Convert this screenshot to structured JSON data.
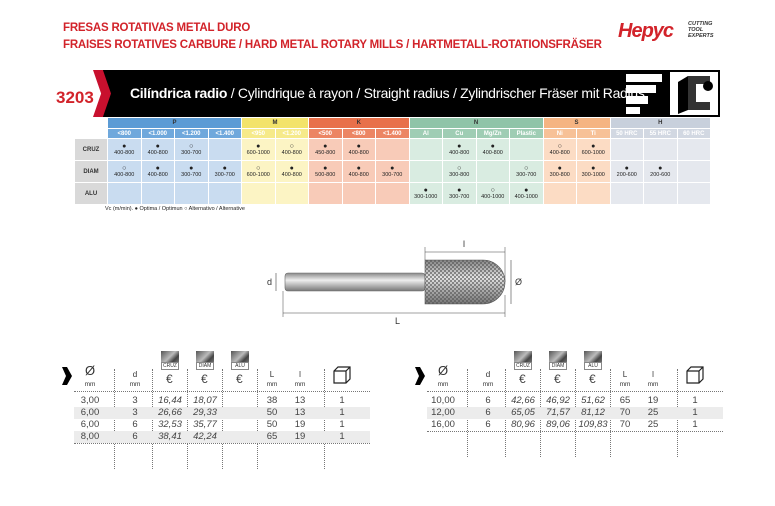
{
  "header": {
    "line1": "FRESAS ROTATIVAS METAL DURO",
    "line2": "FRAISES ROTATIVES CARBURE / HARD METAL ROTARY MILLS / HARTMETALL-ROTATIONSFRÄSER",
    "logo_text": "Hepyc",
    "logo_tagline": "CUTTING TOOL EXPERTS"
  },
  "product": {
    "code": "3203",
    "title_bold": "Cilíndrica radio",
    "title_rest": " / Cylindrique à rayon / Straight radius / Zylindrischer Fräser mit Radius"
  },
  "materials": {
    "groups": [
      {
        "name": "P",
        "color": "#5b9bd5",
        "sub": "#6fa8dc",
        "cell": "#c9dcf0",
        "cols": [
          "<800",
          "<1.000",
          "<1.200",
          "<1.400"
        ]
      },
      {
        "name": "M",
        "color": "#f3e36a",
        "sub": "#f6ea8a",
        "cell": "#fcf4c4",
        "cols": [
          "<950",
          "<1.200"
        ]
      },
      {
        "name": "K",
        "color": "#e8704a",
        "sub": "#ec8563",
        "cell": "#f8cbb8",
        "cols": [
          "<500",
          "<800",
          "<1.400"
        ]
      },
      {
        "name": "N",
        "color": "#8fc4a8",
        "sub": "#9fcdb4",
        "cell": "#d9ece1",
        "cols": [
          "Al",
          "Cu",
          "Mg/Zn",
          "Plastic"
        ]
      },
      {
        "name": "S",
        "color": "#f5b482",
        "sub": "#f7c197",
        "cell": "#fcdcc4",
        "cols": [
          "Ni",
          "Ti"
        ]
      },
      {
        "name": "H",
        "color": "#c8d0dc",
        "sub": "#d2d8e2",
        "cell": "#e5e8ee",
        "cols": [
          "50 HRC",
          "55 HRC",
          "60 HRC"
        ]
      }
    ],
    "rows": [
      {
        "label": "CRUZ",
        "cells": [
          [
            "●",
            "400-800"
          ],
          [
            "●",
            "400-800"
          ],
          [
            "○",
            "300-700"
          ],
          [
            "",
            ""
          ],
          [
            "●",
            "600-1000"
          ],
          [
            "○",
            "400-800"
          ],
          [
            "●",
            "450-800"
          ],
          [
            "●",
            "400-800"
          ],
          [
            "",
            ""
          ],
          [
            "",
            ""
          ],
          [
            "●",
            "400-800"
          ],
          [
            "●",
            "400-800"
          ],
          [
            "",
            ""
          ],
          [
            "○",
            "400-800"
          ],
          [
            "●",
            "600-1000"
          ],
          [
            "",
            ""
          ],
          [
            "",
            ""
          ],
          [
            "",
            ""
          ]
        ]
      },
      {
        "label": "DIAM",
        "cells": [
          [
            "○",
            "400-800"
          ],
          [
            "●",
            "400-800"
          ],
          [
            "●",
            "300-700"
          ],
          [
            "●",
            "300-700"
          ],
          [
            "○",
            "600-1000"
          ],
          [
            "●",
            "400-800"
          ],
          [
            "●",
            "500-800"
          ],
          [
            "●",
            "400-800"
          ],
          [
            "●",
            "300-700"
          ],
          [
            "",
            ""
          ],
          [
            "○",
            "300-800"
          ],
          [
            "",
            ""
          ],
          [
            "○",
            "300-700"
          ],
          [
            "●",
            "300-800"
          ],
          [
            "●",
            "300-1000"
          ],
          [
            "●",
            "200-600"
          ],
          [
            "●",
            "200-600"
          ],
          [
            "",
            ""
          ]
        ]
      },
      {
        "label": "ALU",
        "cells": [
          [
            "",
            ""
          ],
          [
            "",
            ""
          ],
          [
            "",
            ""
          ],
          [
            "",
            ""
          ],
          [
            "",
            ""
          ],
          [
            "",
            ""
          ],
          [
            "",
            ""
          ],
          [
            "",
            ""
          ],
          [
            "",
            ""
          ],
          [
            "●",
            "300-1000"
          ],
          [
            "●",
            "300-700"
          ],
          [
            "○",
            "400-1000"
          ],
          [
            "●",
            "400-1000"
          ],
          [
            "",
            ""
          ],
          [
            "",
            ""
          ],
          [
            "",
            ""
          ],
          [
            "",
            ""
          ],
          [
            "",
            ""
          ]
        ]
      }
    ],
    "legend": "Vc (m/min). ● Optima / Optimun  ○ Alternativo / Alternative"
  },
  "drawing": {
    "label_l": "l",
    "label_L": "L",
    "label_d": "d",
    "label_diam": "Ø"
  },
  "table_headers": {
    "diam": "Ø",
    "d": "d",
    "mm": "mm",
    "L": "L",
    "l": "l",
    "cruz": "CRUZ",
    "diam_cut": "DIAM",
    "alu": "ALU",
    "euro": "€",
    "pack_icon": "box-icon"
  },
  "tables": [
    {
      "rows": [
        [
          "3,00",
          "3",
          "16,44",
          "18,07",
          "",
          "38",
          "13",
          "1"
        ],
        [
          "6,00",
          "3",
          "26,66",
          "29,33",
          "",
          "50",
          "13",
          "1"
        ],
        [
          "6,00",
          "6",
          "32,53",
          "35,77",
          "",
          "50",
          "19",
          "1"
        ],
        [
          "8,00",
          "6",
          "38,41",
          "42,24",
          "",
          "65",
          "19",
          "1"
        ]
      ]
    },
    {
      "rows": [
        [
          "10,00",
          "6",
          "42,66",
          "46,92",
          "51,62",
          "65",
          "19",
          "1"
        ],
        [
          "12,00",
          "6",
          "65,05",
          "71,57",
          "81,12",
          "70",
          "25",
          "1"
        ],
        [
          "16,00",
          "6",
          "80,96",
          "89,06",
          "109,83",
          "70",
          "25",
          "1"
        ]
      ]
    }
  ]
}
